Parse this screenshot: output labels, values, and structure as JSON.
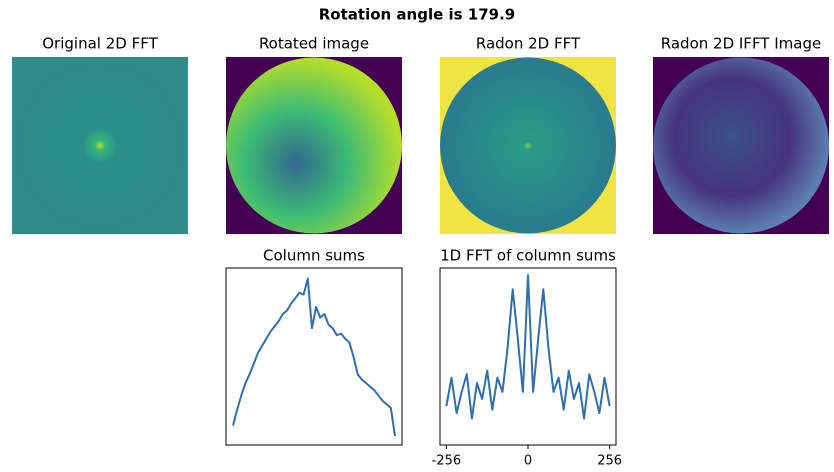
{
  "title": "Rotation angle is 179.9",
  "images": [
    {
      "title": "Original 2D FFT"
    },
    {
      "title": "Rotated image"
    },
    {
      "title": "Radon 2D FFT"
    },
    {
      "title": "Radon 2D IFFT Image"
    }
  ],
  "chart_data": [
    {
      "type": "line",
      "title": "Column sums",
      "color": "#2f6fad",
      "ylim": [
        0,
        100
      ],
      "values": [
        11,
        20,
        28,
        35,
        40,
        46,
        52,
        56,
        60,
        64,
        67,
        70,
        74,
        76,
        80,
        83,
        86,
        85,
        94,
        66,
        78,
        72,
        74,
        68,
        66,
        62,
        63,
        60,
        58,
        50,
        40,
        37,
        35,
        33,
        31,
        28,
        25,
        23,
        21,
        5
      ]
    },
    {
      "type": "line",
      "title": "1D FFT of column sums",
      "color": "#2f6fad",
      "xlim": [
        -276,
        276
      ],
      "ylim": [
        0,
        100
      ],
      "xticks": [
        -256,
        0,
        256
      ],
      "x": [
        -256,
        -240,
        -224,
        -208,
        -192,
        -176,
        -160,
        -144,
        -128,
        -112,
        -96,
        -80,
        -64,
        -48,
        -32,
        -16,
        0,
        16,
        32,
        48,
        64,
        80,
        96,
        112,
        128,
        144,
        160,
        176,
        192,
        208,
        224,
        240,
        256
      ],
      "values": [
        22,
        38,
        18,
        30,
        40,
        15,
        35,
        26,
        42,
        20,
        38,
        30,
        55,
        88,
        60,
        30,
        96,
        30,
        60,
        88,
        55,
        30,
        38,
        20,
        42,
        26,
        35,
        15,
        40,
        30,
        18,
        38,
        22
      ]
    }
  ]
}
